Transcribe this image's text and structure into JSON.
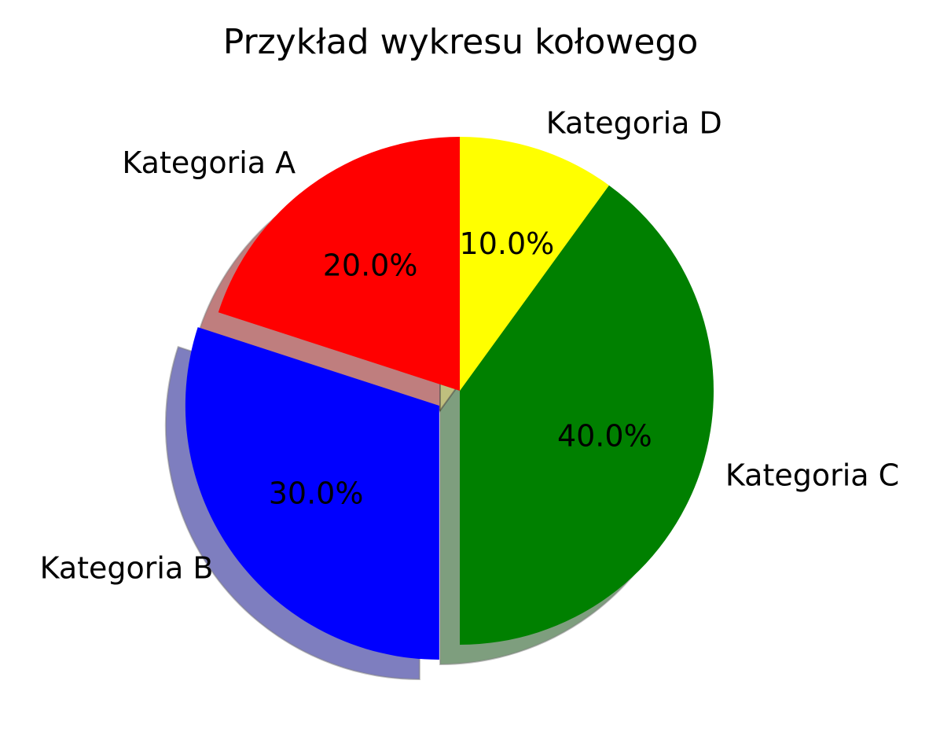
{
  "chart_data": {
    "type": "pie",
    "title": "Przykład wykresu kołowego",
    "categories": [
      "Kategoria A",
      "Kategoria B",
      "Kategoria C",
      "Kategoria D"
    ],
    "values": [
      20,
      30,
      40,
      10
    ],
    "percent_labels": [
      "20.0%",
      "30.0%",
      "40.0%",
      "10.0%"
    ],
    "colors": [
      "#ff0000",
      "#0000ff",
      "#008000",
      "#ffff00"
    ],
    "exploded": [
      false,
      true,
      false,
      false
    ],
    "shadow": true,
    "start_angle_deg": 90,
    "direction": "counterclockwise"
  }
}
